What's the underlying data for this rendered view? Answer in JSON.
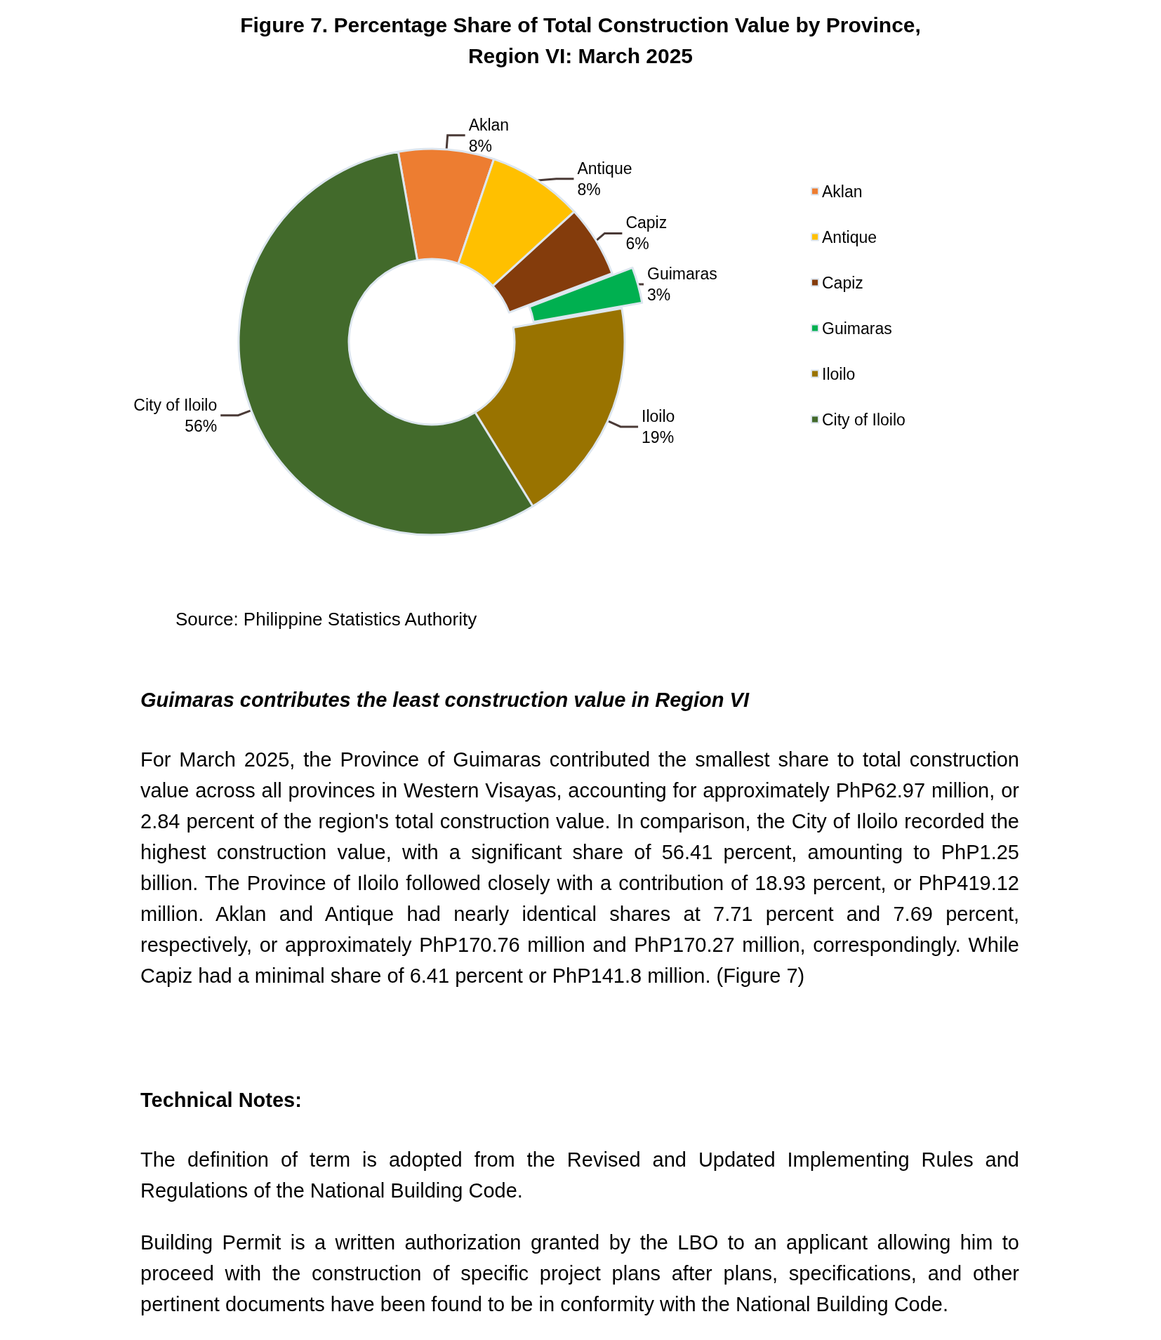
{
  "chart_data": {
    "type": "donut",
    "title": "Figure 7. Percentage Share of Total Construction Value by Province,\nRegion VI: March 2025",
    "categories": [
      "Aklan",
      "Antique",
      "Capiz",
      "Guimaras",
      "Iloilo",
      "City of Iloilo"
    ],
    "values": [
      8,
      8,
      6,
      3,
      19,
      56
    ],
    "colors": [
      "#ed7d31",
      "#ffc000",
      "#843c0c",
      "#00b050",
      "#997300",
      "#426a2b"
    ],
    "value_labels": [
      "8%",
      "8%",
      "6%",
      "3%",
      "19%",
      "56%"
    ],
    "legend": "right",
    "annotations": [
      "Source: Philippine Statistics Authority",
      "Guimaras contributes the least construction value in Region VI",
      "For March 2025, the Province of Guimaras contributed the smallest share to total construction value across all provinces in Western Visayas, accounting for approximately PhP62.97 million, or 2.84 percent of the region's total construction value. In comparison, the City of Iloilo recorded the highest construction value, with a significant share of 56.41 percent, amounting to PhP1.25 billion. The Province of Iloilo followed closely with a contribution of 18.93 percent, or PhP419.12 million. Aklan and Antique had nearly identical shares at 7.71 percent and 7.69 percent, respectively, or approximately PhP170.76 million and PhP170.27 million, correspondingly. While Capiz had a minimal share of 6.41 percent or PhP141.8 million. (Figure 7)",
      "Technical Notes:",
      "The definition of term is adopted from the Revised and Updated Implementing Rules and Regulations of the National Building Code.",
      "Building Permit is a written authorization granted by the LBO to an applicant allowing him to proceed with the construction of specific project plans after plans, specifications, and other pertinent documents have been found to be in conformity with the National Building Code."
    ]
  }
}
